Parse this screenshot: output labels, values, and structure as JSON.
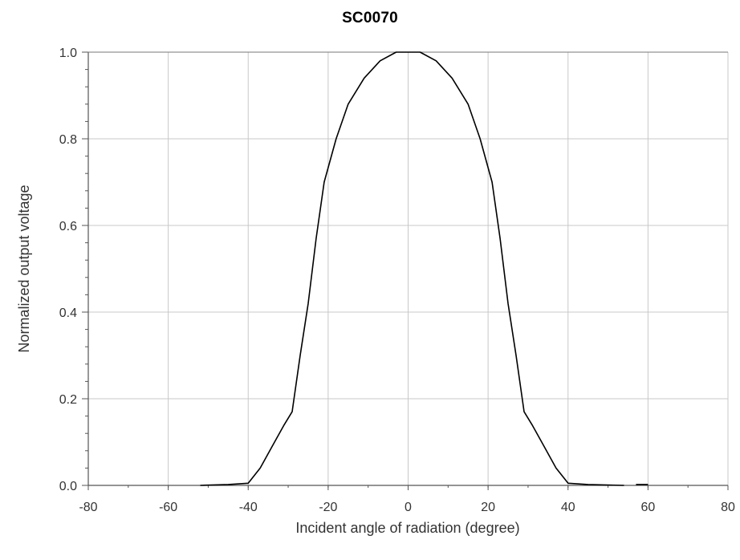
{
  "chart_data": {
    "type": "line",
    "title": "SC0070",
    "xlabel": "Incident angle of radiation (degree)",
    "ylabel": "Normalized output voltage",
    "xlim": [
      -80,
      80
    ],
    "ylim": [
      0.0,
      1.0
    ],
    "xticks": [
      "-80",
      "-60",
      "-40",
      "-20",
      "0",
      "20",
      "40",
      "60",
      "80"
    ],
    "yticks": [
      "0.0",
      "0.2",
      "0.4",
      "0.6",
      "0.8",
      "1.0"
    ],
    "grid": true,
    "legend": "none",
    "line_color": "#000000",
    "grid_color": "#c8c8c8",
    "series": [
      {
        "x": [
          -52,
          -45,
          -40,
          -37,
          -34,
          -31,
          -29,
          -27,
          -25,
          -23,
          -21,
          -18,
          -15,
          -11,
          -7,
          -3,
          0,
          3,
          7,
          11,
          15,
          18,
          21,
          23,
          25,
          27,
          29,
          31,
          34,
          37,
          40,
          45,
          54
        ],
        "y": [
          0.0,
          0.002,
          0.005,
          0.04,
          0.09,
          0.14,
          0.17,
          0.3,
          0.42,
          0.57,
          0.7,
          0.8,
          0.88,
          0.94,
          0.98,
          1.0,
          1.0,
          1.0,
          0.98,
          0.94,
          0.88,
          0.8,
          0.7,
          0.57,
          0.42,
          0.3,
          0.17,
          0.14,
          0.09,
          0.04,
          0.005,
          0.002,
          0.0
        ]
      },
      {
        "x": [
          57,
          60
        ],
        "y": [
          0.002,
          0.002
        ]
      }
    ]
  }
}
